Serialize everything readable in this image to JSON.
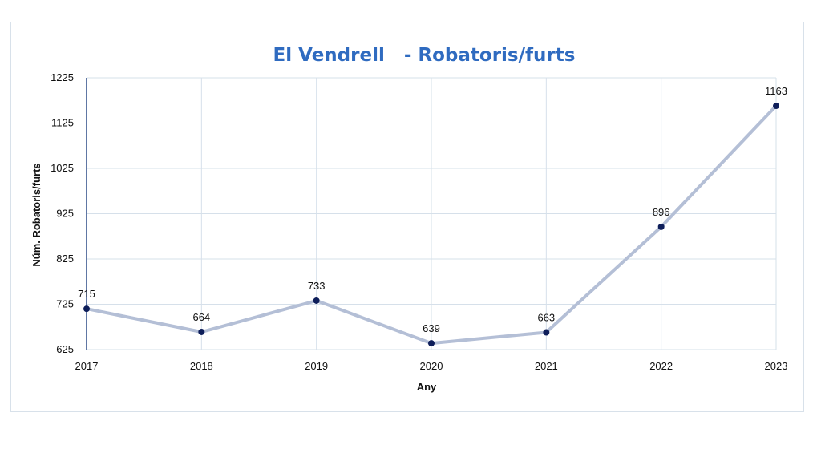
{
  "chart_data": {
    "type": "line",
    "title": "El Vendrell   - Robatoris/furts",
    "xlabel": "Any",
    "ylabel": "Núm. Robatoris/furts",
    "categories": [
      "2017",
      "2018",
      "2019",
      "2020",
      "2021",
      "2022",
      "2023"
    ],
    "series": [
      {
        "values": [
          715,
          664,
          733,
          639,
          663,
          896,
          1163
        ]
      }
    ],
    "ylim": [
      625,
      1225
    ],
    "yticks": [
      625,
      725,
      825,
      925,
      1025,
      1125,
      1225
    ],
    "grid": true,
    "data_labels": true,
    "colors": {
      "title": "#2f6bc0",
      "line": "#b4bfd6",
      "marker": "#0e1e5a",
      "axis": "#2c4a86",
      "grid": "#d6e0ea"
    }
  }
}
